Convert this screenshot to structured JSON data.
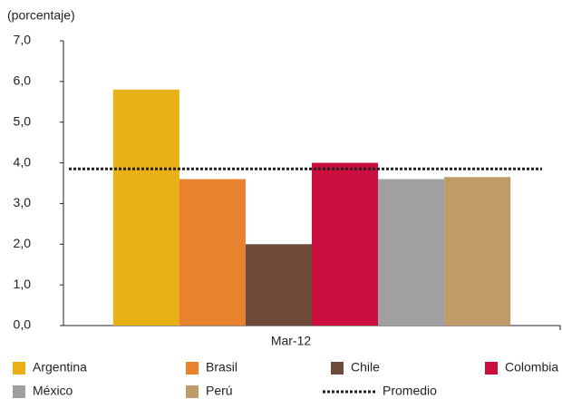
{
  "chart_data": {
    "type": "bar",
    "y_label": "(porcentaje)",
    "categories": [
      "Mar-12"
    ],
    "series": [
      {
        "name": "Argentina",
        "color": "#e8b015",
        "values": [
          5.8
        ]
      },
      {
        "name": "Brasil",
        "color": "#e8822e",
        "values": [
          3.6
        ]
      },
      {
        "name": "Chile",
        "color": "#6e4a3a",
        "values": [
          2.0
        ]
      },
      {
        "name": "Colombia",
        "color": "#cc0e3f",
        "values": [
          4.0
        ]
      },
      {
        "name": "México",
        "color": "#a0a0a2",
        "values": [
          3.6
        ]
      },
      {
        "name": "Perú",
        "color": "#bf9b68",
        "values": [
          3.65
        ]
      }
    ],
    "average": {
      "name": "Promedio",
      "value": 3.85,
      "color": "#222222"
    },
    "ylim": [
      0,
      7
    ],
    "yticks": [
      {
        "value": 0,
        "label": "0,0"
      },
      {
        "value": 1,
        "label": "1,0"
      },
      {
        "value": 2,
        "label": "2,0"
      },
      {
        "value": 3,
        "label": "3,0"
      },
      {
        "value": 4,
        "label": "4,0"
      },
      {
        "value": 5,
        "label": "5,0"
      },
      {
        "value": 6,
        "label": "6,0"
      },
      {
        "value": 7,
        "label": "7,0"
      }
    ],
    "grid": false
  }
}
